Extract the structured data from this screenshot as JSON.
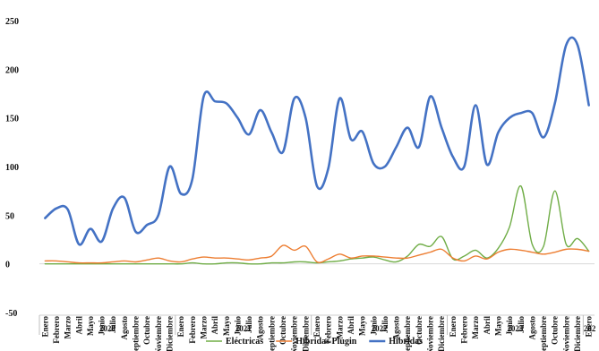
{
  "chart_data": {
    "type": "line",
    "title": "",
    "xlabel": "",
    "ylabel": "",
    "ylim": [
      -50,
      250
    ],
    "yticks": [
      "250",
      "200",
      "150",
      "100",
      "50",
      "0",
      "-50"
    ],
    "grid": false,
    "legend_position": "bottom",
    "categories": [
      "Enero",
      "Febrero",
      "Marzo",
      "Abril",
      "Mayo",
      "Junio",
      "Julio",
      "Agosto",
      "Septiembre",
      "Octubre",
      "Noviembre",
      "Diciembre",
      "Enero",
      "Febrero",
      "Marzo",
      "Abril",
      "Mayo",
      "Junio",
      "Julio",
      "Agosto",
      "Septiembre",
      "Octubre",
      "Noviembre",
      "Diciembre",
      "Enero",
      "Febrero",
      "Marzo",
      "Abril",
      "Mayo",
      "Junio",
      "Julio",
      "Agosto",
      "Septiembre",
      "Octubre",
      "Noviembre",
      "Diciembre",
      "Enero",
      "Febrero",
      "Marzo",
      "Abril",
      "Mayo",
      "Junio",
      "Julio",
      "Agosto",
      "Septiembre",
      "Octubre",
      "Noviembre",
      "Diciembre",
      "Enero"
    ],
    "year_labels": [
      "2020",
      "2021",
      "2022",
      "2023",
      "202"
    ],
    "series": [
      {
        "name": "Eléctricas",
        "color": "#70ad47",
        "values": [
          0,
          0,
          0,
          0,
          0,
          0,
          0,
          0,
          0,
          0,
          0,
          0,
          0,
          1,
          0,
          0,
          1,
          1,
          0,
          0,
          1,
          1,
          2,
          2,
          1,
          2,
          3,
          5,
          6,
          7,
          4,
          2,
          8,
          20,
          18,
          28,
          5,
          8,
          14,
          6,
          16,
          38,
          80,
          20,
          18,
          75,
          20,
          26,
          13
        ]
      },
      {
        "name": "Híbridas Plugin",
        "color": "#ed7d31",
        "values": [
          3,
          3,
          2,
          1,
          1,
          1,
          2,
          3,
          2,
          4,
          6,
          3,
          2,
          5,
          7,
          6,
          6,
          5,
          4,
          6,
          8,
          19,
          14,
          18,
          2,
          5,
          10,
          6,
          8,
          8,
          7,
          6,
          6,
          9,
          12,
          15,
          6,
          3,
          8,
          5,
          12,
          15,
          14,
          12,
          10,
          12,
          15,
          15,
          13
        ]
      },
      {
        "name": "Híbridas",
        "color": "#4472c4",
        "values": [
          47,
          57,
          56,
          20,
          36,
          23,
          57,
          68,
          33,
          40,
          50,
          100,
          72,
          87,
          172,
          167,
          165,
          150,
          133,
          158,
          135,
          115,
          170,
          150,
          80,
          98,
          170,
          128,
          136,
          103,
          100,
          120,
          140,
          120,
          172,
          140,
          110,
          100,
          163,
          102,
          135,
          150,
          155,
          155,
          130,
          165,
          225,
          225,
          163
        ]
      }
    ]
  }
}
